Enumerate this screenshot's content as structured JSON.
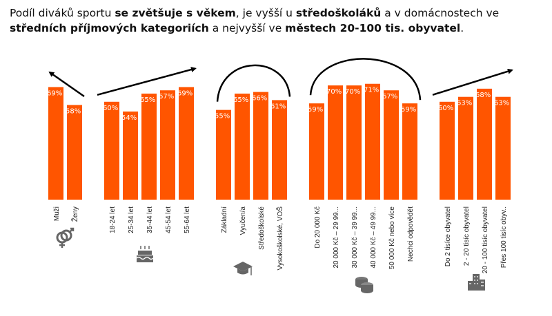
{
  "title": [
    {
      "t": "Podíl diváků sportu ",
      "b": false
    },
    {
      "t": "se zvětšuje s věkem",
      "b": true
    },
    {
      "t": ", je vyšší u ",
      "b": false
    },
    {
      "t": "středoškoláků",
      "b": true
    },
    {
      "t": " a v domácnostech ve ",
      "b": false
    },
    {
      "t": "středních příjmových kategoriích",
      "b": true
    },
    {
      "t": " a nejvyšší ve ",
      "b": false
    },
    {
      "t": "městech 20-100 tis. obyvatel",
      "b": true
    },
    {
      "t": ".",
      "b": false
    }
  ],
  "chart_data": {
    "type": "bar",
    "ylim": [
      0,
      100
    ],
    "unit": "%",
    "bar_color": "#FF5500",
    "groups": [
      {
        "icon": "gender-icon",
        "trend": "arrow-down",
        "categories": [
          "Muži",
          "Ženy"
        ],
        "values": [
          69,
          58
        ]
      },
      {
        "icon": "birthday-cake-icon",
        "trend": "arrow-up",
        "categories": [
          "18-24 let",
          "25-34 let",
          "35-44 let",
          "45-54 let",
          "55-64 let"
        ],
        "values": [
          60,
          54,
          65,
          67,
          69
        ]
      },
      {
        "icon": "graduation-cap-icon",
        "trend": "arc",
        "categories": [
          "Základní",
          "Vyučen/a",
          "Středoškolské",
          "Vysokoškolské, VOŠ"
        ],
        "values": [
          55,
          65,
          66,
          61
        ]
      },
      {
        "icon": "coins-icon",
        "trend": "arc",
        "categories": [
          "Do 20 000 Kč",
          "20 000 Kč – 29 99...",
          "30 000 Kč – 39 99...",
          "40 000 Kč – 49 99...",
          "50 000 Kč nebo více",
          "Nechci odpovědět"
        ],
        "values": [
          59,
          70,
          70,
          71,
          67,
          59
        ]
      },
      {
        "icon": "city-buildings-icon",
        "trend": "arrow-up",
        "categories": [
          "Do 2 tisíce obyvatel",
          "2 - 20 tisíc obyvatel",
          "20 - 100 tisíc obyvatel",
          "Přes 100 tisíc obyv.."
        ],
        "values": [
          60,
          63,
          68,
          63
        ]
      }
    ]
  }
}
